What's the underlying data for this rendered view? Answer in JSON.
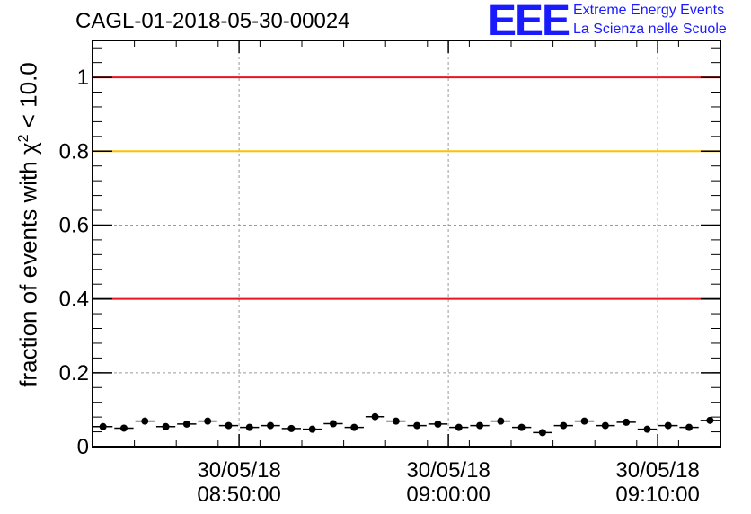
{
  "chart_data": {
    "type": "scatter",
    "title": "CAGL-01-2018-05-30-00024",
    "ylabel_prefix": "fraction of events with",
    "ylabel_chi": "χ",
    "ylabel_exp": "2",
    "ylabel_suffix": "< 10.0",
    "ylim": [
      0,
      1.1
    ],
    "y_ticks": [
      "0",
      "0.2",
      "0.4",
      "0.6",
      "0.8",
      "1"
    ],
    "x_ticks": [
      {
        "date": "30/05/18",
        "time": "08:50:00"
      },
      {
        "date": "30/05/18",
        "time": "09:00:00"
      },
      {
        "date": "30/05/18",
        "time": "09:10:00"
      }
    ],
    "reference_lines": [
      {
        "y": 1.0,
        "color": "#e8141e"
      },
      {
        "y": 0.8,
        "color": "#ffc000"
      },
      {
        "y": 0.4,
        "color": "#e8141e"
      }
    ],
    "values": [
      0.054,
      0.05,
      0.069,
      0.054,
      0.061,
      0.069,
      0.057,
      0.052,
      0.057,
      0.049,
      0.047,
      0.062,
      0.052,
      0.081,
      0.069,
      0.057,
      0.061,
      0.052,
      0.057,
      0.069,
      0.052,
      0.038,
      0.057,
      0.069,
      0.057,
      0.066,
      0.047,
      0.057,
      0.052,
      0.071
    ],
    "grid": true,
    "marker_color": "#000000"
  },
  "logo": {
    "mark": "EEE",
    "line1": "Extreme Energy Events",
    "line2": "La Scienza nelle Scuole",
    "color": "#1a1aff"
  }
}
